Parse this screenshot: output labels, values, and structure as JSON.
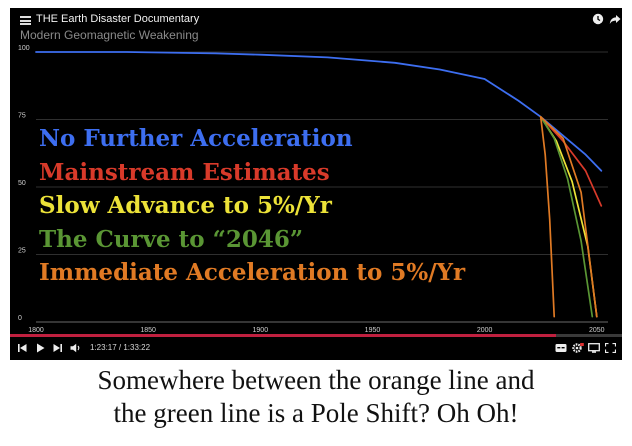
{
  "player": {
    "video_title": "THE Earth Disaster Documentary",
    "time_display": "1:23:17 / 1:33:22",
    "progress": 0.892
  },
  "chart_data": {
    "type": "line",
    "title": "Modern Geomagnetic Weakening",
    "xlabel": "",
    "ylabel": "",
    "xlim": [
      1800,
      2055
    ],
    "ylim": [
      0,
      100
    ],
    "x_ticks": [
      1800,
      1850,
      1900,
      1950,
      2000,
      2050
    ],
    "y_ticks": [
      0,
      25,
      50,
      75,
      100
    ],
    "grid": "horizontal",
    "legend_position": "left-center",
    "series": [
      {
        "name": "No Further Acceleration",
        "color": "#3d6ef0",
        "x": [
          1800,
          1840,
          1880,
          1900,
          1930,
          1960,
          1980,
          2000,
          2015,
          2025,
          2035,
          2045,
          2052
        ],
        "y": [
          100,
          100,
          99.5,
          99,
          98,
          96,
          93.5,
          90,
          82,
          76,
          69,
          62,
          56
        ]
      },
      {
        "name": "Mainstream Estimates",
        "color": "#d83a2a",
        "x": [
          2025,
          2035,
          2045,
          2052
        ],
        "y": [
          76,
          67,
          56,
          43
        ]
      },
      {
        "name": "Slow Advance to 5%/Yr",
        "color": "#ece238",
        "x": [
          2025,
          2032,
          2039,
          2046,
          2050
        ],
        "y": [
          76,
          67,
          52,
          28,
          2
        ]
      },
      {
        "name": "The Curve to “2046”",
        "color": "#5a9634",
        "x": [
          2025,
          2031,
          2037,
          2043,
          2048
        ],
        "y": [
          76,
          68,
          53,
          30,
          2
        ]
      },
      {
        "name": "Immediate Acceleration to 5%/Yr",
        "color": "#e07a24",
        "x": [
          2025,
          2027,
          2029,
          2031
        ],
        "y": [
          76,
          62,
          38,
          2
        ]
      },
      {
        "name": "",
        "color": "#e07a24",
        "x": [
          2025,
          2035,
          2043,
          2050
        ],
        "y": [
          76,
          68,
          48,
          2
        ]
      }
    ]
  },
  "caption": {
    "line1": "Somewhere between the orange line and",
    "line2": "the green line is a Pole Shift? Oh Oh!"
  }
}
